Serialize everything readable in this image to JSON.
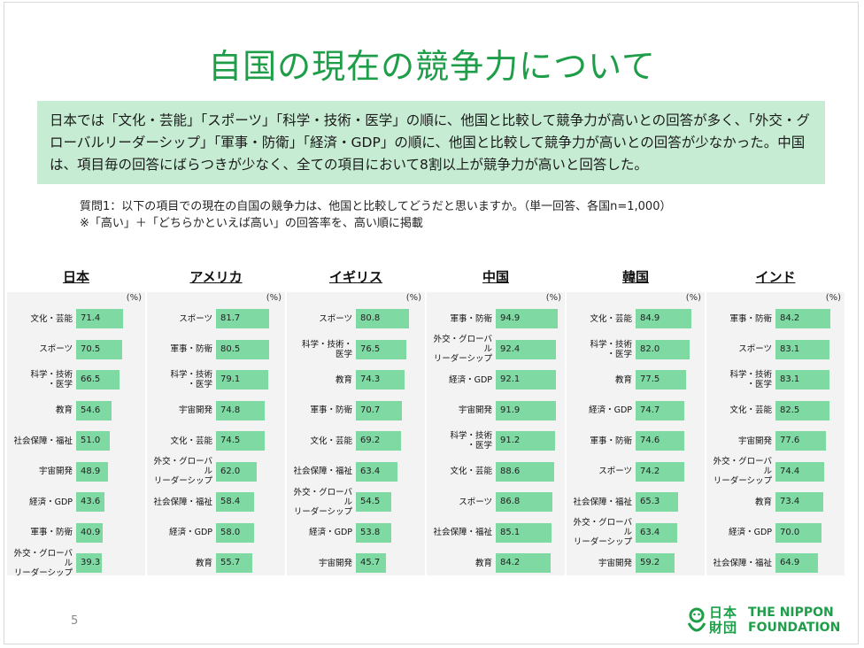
{
  "title": "自国の現在の競争力について",
  "summary": "日本では「文化・芸能」「スポーツ」「科学・技術・医学」の順に、他国と比較して競争力が高いとの回答が多く、「外交・グローバルリーダーシップ」「軍事・防衛」「経済・GDP」の順に、他国と比較して競争力が高いとの回答が少なかった。中国は、項目毎の回答にばらつきが少なく、全ての項目において8割以上が競争力が高いと回答した。",
  "question": {
    "line1": "質問1：以下の項目での現在の自国の競争力は、他国と比較してどうだと思いますか。（単一回答、各国n=1,000）",
    "line2": "※「高い」＋「どちらかといえば高い」の回答率を、高い順に掲載"
  },
  "unit_label": "(%)",
  "page_number": "5",
  "logo": {
    "jp_line1": "日本",
    "jp_line2": "財団",
    "en_line1": "THE NIPPON",
    "en_line2": "FOUNDATION"
  },
  "colors": {
    "bar": "#7ed9a3",
    "title": "#1f9e4a",
    "summary_bg": "#c6ecd3"
  },
  "chart_data": [
    {
      "type": "bar",
      "orientation": "horizontal",
      "title": "日本",
      "xlim": [
        0,
        100
      ],
      "categories": [
        "文化・芸能",
        "スポーツ",
        "科学・技術・医学",
        "教育",
        "社会保障・福祉",
        "宇宙開発",
        "経済・GDP",
        "軍事・防衛",
        "外交・グローバルリーダーシップ"
      ],
      "labels": [
        [
          "文化・芸能"
        ],
        [
          "スポーツ"
        ],
        [
          "科学・技術",
          "・医学"
        ],
        [
          "教育"
        ],
        [
          "社会保障・福祉"
        ],
        [
          "宇宙開発"
        ],
        [
          "経済・GDP"
        ],
        [
          "軍事・防衛"
        ],
        [
          "外交・グローバル",
          "リーダーシップ"
        ]
      ],
      "values": [
        71.4,
        70.5,
        66.5,
        54.6,
        51.0,
        48.9,
        43.6,
        40.9,
        39.3
      ],
      "value_labels": [
        "71.4",
        "70.5",
        "66.5",
        "54.6",
        "51.0",
        "48.9",
        "43.6",
        "40.9",
        "39.3"
      ]
    },
    {
      "type": "bar",
      "orientation": "horizontal",
      "title": "アメリカ",
      "xlim": [
        0,
        100
      ],
      "categories": [
        "スポーツ",
        "軍事・防衛",
        "科学・技術・医学",
        "宇宙開発",
        "文化・芸能",
        "外交・グローバルリーダーシップ",
        "社会保障・福祉",
        "経済・GDP",
        "教育"
      ],
      "labels": [
        [
          "スポーツ"
        ],
        [
          "軍事・防衛"
        ],
        [
          "科学・技術",
          "・医学"
        ],
        [
          "宇宙開発"
        ],
        [
          "文化・芸能"
        ],
        [
          "外交・グローバル",
          "リーダーシップ"
        ],
        [
          "社会保障・福祉"
        ],
        [
          "経済・GDP"
        ],
        [
          "教育"
        ]
      ],
      "values": [
        81.7,
        80.5,
        79.1,
        74.8,
        74.5,
        62.0,
        58.4,
        58.0,
        55.7
      ],
      "value_labels": [
        "81.7",
        "80.5",
        "79.1",
        "74.8",
        "74.5",
        "62.0",
        "58.4",
        "58.0",
        "55.7"
      ]
    },
    {
      "type": "bar",
      "orientation": "horizontal",
      "title": "イギリス",
      "xlim": [
        0,
        100
      ],
      "categories": [
        "スポーツ",
        "科学・技術・医学",
        "教育",
        "軍事・防衛",
        "文化・芸能",
        "社会保障・福祉",
        "外交・グローバルリーダーシップ",
        "経済・GDP",
        "宇宙開発"
      ],
      "labels": [
        [
          "スポーツ"
        ],
        [
          "科学・技術・",
          "医学"
        ],
        [
          "教育"
        ],
        [
          "軍事・防衛"
        ],
        [
          "文化・芸能"
        ],
        [
          "社会保障・福祉"
        ],
        [
          "外交・グローバル",
          "リーダーシップ"
        ],
        [
          "経済・GDP"
        ],
        [
          "宇宙開発"
        ]
      ],
      "values": [
        80.8,
        76.5,
        74.3,
        70.7,
        69.2,
        63.4,
        54.5,
        53.8,
        45.7
      ],
      "value_labels": [
        "80.8",
        "76.5",
        "74.3",
        "70.7",
        "69.2",
        "63.4",
        "54.5",
        "53.8",
        "45.7"
      ]
    },
    {
      "type": "bar",
      "orientation": "horizontal",
      "title": "中国",
      "xlim": [
        0,
        100
      ],
      "categories": [
        "軍事・防衛",
        "外交・グローバルリーダーシップ",
        "経済・GDP",
        "宇宙開発",
        "科学・技術・医学",
        "文化・芸能",
        "スポーツ",
        "社会保障・福祉",
        "教育"
      ],
      "labels": [
        [
          "軍事・防衛"
        ],
        [
          "外交・グローバル",
          "リーダーシップ"
        ],
        [
          "経済・GDP"
        ],
        [
          "宇宙開発"
        ],
        [
          "科学・技術",
          "・医学"
        ],
        [
          "文化・芸能"
        ],
        [
          "スポーツ"
        ],
        [
          "社会保障・福祉"
        ],
        [
          "教育"
        ]
      ],
      "values": [
        94.9,
        92.4,
        92.1,
        91.9,
        91.2,
        88.6,
        86.8,
        85.1,
        84.2
      ],
      "value_labels": [
        "94.9",
        "92.4",
        "92.1",
        "91.9",
        "91.2",
        "88.6",
        "86.8",
        "85.1",
        "84.2"
      ]
    },
    {
      "type": "bar",
      "orientation": "horizontal",
      "title": "韓国",
      "xlim": [
        0,
        100
      ],
      "categories": [
        "文化・芸能",
        "科学・技術・医学",
        "教育",
        "経済・GDP",
        "軍事・防衛",
        "スポーツ",
        "社会保障・福祉",
        "外交・グローバルリーダーシップ",
        "宇宙開発"
      ],
      "labels": [
        [
          "文化・芸能"
        ],
        [
          "科学・技術",
          "・医学"
        ],
        [
          "教育"
        ],
        [
          "経済・GDP"
        ],
        [
          "軍事・防衛"
        ],
        [
          "スポーツ"
        ],
        [
          "社会保障・福祉"
        ],
        [
          "外交・グローバル",
          "リーダーシップ"
        ],
        [
          "宇宙開発"
        ]
      ],
      "values": [
        84.9,
        82.0,
        77.5,
        74.7,
        74.6,
        74.2,
        65.3,
        63.4,
        59.2
      ],
      "value_labels": [
        "84.9",
        "82.0",
        "77.5",
        "74.7",
        "74.6",
        "74.2",
        "65.3",
        "63.4",
        "59.2"
      ]
    },
    {
      "type": "bar",
      "orientation": "horizontal",
      "title": "インド",
      "xlim": [
        0,
        100
      ],
      "categories": [
        "軍事・防衛",
        "スポーツ",
        "科学・技術・医学",
        "文化・芸能",
        "宇宙開発",
        "外交・グローバルリーダーシップ",
        "教育",
        "経済・GDP",
        "社会保障・福祉"
      ],
      "labels": [
        [
          "軍事・防衛"
        ],
        [
          "スポーツ"
        ],
        [
          "科学・技術",
          "・医学"
        ],
        [
          "文化・芸能"
        ],
        [
          "宇宙開発"
        ],
        [
          "外交・グローバル",
          "リーダーシップ"
        ],
        [
          "教育"
        ],
        [
          "経済・GDP"
        ],
        [
          "社会保障・福祉"
        ]
      ],
      "values": [
        84.2,
        83.1,
        83.1,
        82.5,
        77.6,
        74.4,
        73.4,
        70.0,
        64.9
      ],
      "value_labels": [
        "84.2",
        "83.1",
        "83.1",
        "82.5",
        "77.6",
        "74.4",
        "73.4",
        "70.0",
        "64.9"
      ]
    }
  ]
}
